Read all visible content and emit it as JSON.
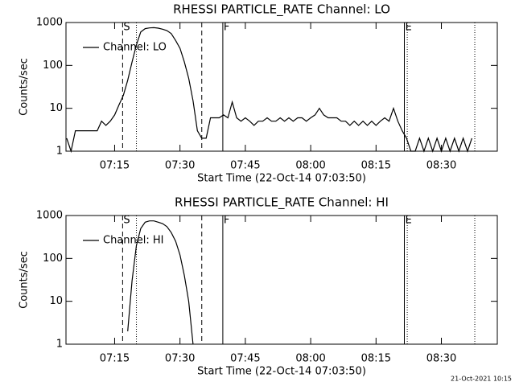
{
  "chart_data": [
    {
      "type": "line",
      "title": "RHESSI PARTICLE_RATE Channel: LO",
      "xlabel": "Start Time (22-Oct-14 07:03:50)",
      "ylabel": "Counts/sec",
      "xlim": [
        "07:03:50",
        "08:42:50"
      ],
      "xticks": [
        "07:15",
        "07:30",
        "07:45",
        "08:00",
        "08:15",
        "08:30"
      ],
      "ylim": [
        1,
        1000
      ],
      "yticks": [
        1,
        10,
        100,
        1000
      ],
      "log_y": true,
      "legend": "top-left",
      "x": [
        "07:04",
        "07:05",
        "07:06",
        "07:07",
        "07:08",
        "07:09",
        "07:10",
        "07:11",
        "07:12",
        "07:13",
        "07:14",
        "07:15",
        "07:16",
        "07:17",
        "07:18",
        "07:19",
        "07:20",
        "07:21",
        "07:22",
        "07:23",
        "07:24",
        "07:25",
        "07:26",
        "07:27",
        "07:28",
        "07:29",
        "07:30",
        "07:31",
        "07:32",
        "07:33",
        "07:34",
        "07:35",
        "07:36",
        "07:37",
        "07:38",
        "07:39",
        "07:40",
        "07:41",
        "07:42",
        "07:43",
        "07:44",
        "07:45",
        "07:46",
        "07:47",
        "07:48",
        "07:49",
        "07:50",
        "07:51",
        "07:52",
        "07:53",
        "07:54",
        "07:55",
        "07:56",
        "07:57",
        "07:58",
        "07:59",
        "08:00",
        "08:01",
        "08:02",
        "08:03",
        "08:04",
        "08:05",
        "08:06",
        "08:07",
        "08:08",
        "08:09",
        "08:10",
        "08:11",
        "08:12",
        "08:13",
        "08:14",
        "08:15",
        "08:16",
        "08:17",
        "08:18",
        "08:19",
        "08:20",
        "08:21",
        "08:22",
        "08:23",
        "08:24",
        "08:25",
        "08:26",
        "08:27",
        "08:28",
        "08:29",
        "08:30",
        "08:31",
        "08:32",
        "08:33",
        "08:34",
        "08:35",
        "08:36",
        "08:37"
      ],
      "series": [
        {
          "name": "Channel: LO",
          "color": "#000000",
          "values": [
            2,
            1,
            3,
            3,
            3,
            3,
            3,
            3,
            5,
            4,
            5,
            7,
            12,
            20,
            45,
            120,
            300,
            600,
            720,
            750,
            760,
            740,
            700,
            650,
            550,
            380,
            250,
            120,
            50,
            15,
            3,
            2,
            2,
            6,
            6,
            6,
            7,
            6,
            14,
            6,
            5,
            6,
            5,
            4,
            5,
            5,
            6,
            5,
            5,
            6,
            5,
            6,
            5,
            6,
            6,
            5,
            6,
            7,
            10,
            7,
            6,
            6,
            6,
            5,
            5,
            4,
            5,
            4,
            5,
            4,
            5,
            4,
            5,
            6,
            5,
            10,
            5,
            3,
            2,
            1,
            1,
            2,
            1,
            2,
            1,
            2,
            1,
            2,
            1,
            2,
            1,
            2,
            1,
            2
          ]
        }
      ],
      "markers": [
        {
          "x": "07:16:50",
          "style": "dashed",
          "label": "S"
        },
        {
          "x": "07:20:00",
          "style": "dotted"
        },
        {
          "x": "07:35:00",
          "style": "dashed"
        },
        {
          "x": "07:39:50",
          "style": "solid",
          "label": "F"
        },
        {
          "x": "08:21:30",
          "style": "solid",
          "label": "E"
        },
        {
          "x": "08:22:10",
          "style": "dotted"
        },
        {
          "x": "08:37:40",
          "style": "dotted"
        }
      ]
    },
    {
      "type": "line",
      "title": "RHESSI PARTICLE_RATE Channel: HI",
      "xlabel": "Start Time (22-Oct-14 07:03:50)",
      "ylabel": "Counts/sec",
      "xlim": [
        "07:03:50",
        "08:42:50"
      ],
      "xticks": [
        "07:15",
        "07:30",
        "07:45",
        "08:00",
        "08:15",
        "08:30"
      ],
      "ylim": [
        1,
        1000
      ],
      "yticks": [
        1,
        10,
        100,
        1000
      ],
      "log_y": true,
      "legend": "top-left",
      "x": [
        "07:18",
        "07:19",
        "07:20",
        "07:21",
        "07:22",
        "07:23",
        "07:24",
        "07:25",
        "07:26",
        "07:27",
        "07:28",
        "07:29",
        "07:30",
        "07:31",
        "07:32",
        "07:33"
      ],
      "series": [
        {
          "name": "Channel: HI",
          "color": "#000000",
          "values": [
            2,
            30,
            200,
            500,
            700,
            750,
            750,
            700,
            650,
            550,
            400,
            250,
            120,
            40,
            10,
            1
          ]
        }
      ],
      "markers": [
        {
          "x": "07:16:50",
          "style": "dashed",
          "label": "S"
        },
        {
          "x": "07:20:00",
          "style": "dotted"
        },
        {
          "x": "07:35:00",
          "style": "dashed"
        },
        {
          "x": "07:39:50",
          "style": "solid",
          "label": "F"
        },
        {
          "x": "08:21:30",
          "style": "solid",
          "label": "E"
        },
        {
          "x": "08:22:10",
          "style": "dotted"
        },
        {
          "x": "08:37:40",
          "style": "dotted"
        }
      ]
    }
  ],
  "footer": "21-Oct-2021 10:15"
}
